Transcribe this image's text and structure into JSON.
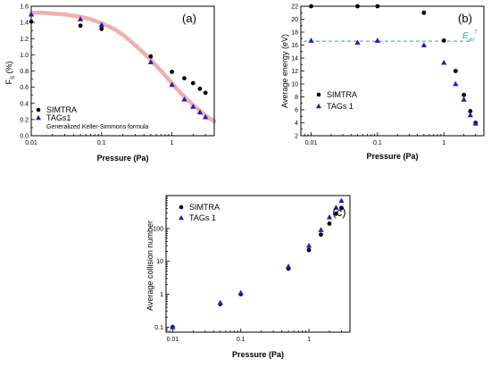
{
  "chart_data": [
    {
      "type": "scatter",
      "panel_label": "(a)",
      "xlabel": "Pressure (Pa)",
      "ylabel_main": "F",
      "ylabel_sub": "S",
      "ylabel_unit": " (%)",
      "xscale": "log",
      "xlim": [
        0.01,
        4
      ],
      "ylim": [
        0.0,
        1.6
      ],
      "xticks": [
        {
          "v": 0.01,
          "label": "0.01"
        },
        {
          "v": 0.1,
          "label": "0.1"
        },
        {
          "v": 1,
          "label": "1"
        }
      ],
      "yticks": [
        "0.0",
        "0.2",
        "0.4",
        "0.6",
        "0.8",
        "1.0",
        "1.2",
        "1.4",
        "1.6"
      ],
      "legend_position": "bottom-left",
      "series": [
        {
          "name": "SIMTRA",
          "marker": "circle",
          "color": "#000000",
          "x": [
            0.01,
            0.05,
            0.1,
            0.5,
            1.0,
            1.5,
            2.0,
            2.5,
            3.0
          ],
          "y": [
            1.41,
            1.36,
            1.32,
            0.98,
            0.79,
            0.71,
            0.65,
            0.58,
            0.53
          ]
        },
        {
          "name": "TAGs1",
          "marker": "triangle",
          "color": "#1c1cc8",
          "x": [
            0.01,
            0.05,
            0.1,
            0.5,
            1.0,
            1.5,
            2.0,
            2.5,
            3.0
          ],
          "y": [
            1.5,
            1.44,
            1.37,
            0.91,
            0.63,
            0.45,
            0.36,
            0.29,
            0.23
          ]
        },
        {
          "name": "Generalized Keller-Simmons formula",
          "marker": "line",
          "color": "#f0a0a0",
          "x": [
            0.01,
            0.015,
            0.02,
            0.03,
            0.05,
            0.07,
            0.1,
            0.15,
            0.2,
            0.3,
            0.4,
            0.5,
            0.7,
            1.0,
            1.3,
            1.6,
            2.0,
            2.5,
            3.0,
            3.5,
            4.0
          ],
          "y": [
            1.52,
            1.52,
            1.51,
            1.5,
            1.47,
            1.44,
            1.39,
            1.32,
            1.25,
            1.12,
            1.02,
            0.94,
            0.8,
            0.65,
            0.54,
            0.46,
            0.38,
            0.31,
            0.25,
            0.21,
            0.18
          ]
        }
      ]
    },
    {
      "type": "scatter",
      "panel_label": "(b)",
      "xlabel": "Pressure (Pa)",
      "ylabel": "Average energy (eV)",
      "xscale": "log",
      "xlim": [
        0.007,
        4
      ],
      "ylim": [
        2,
        22
      ],
      "xticks": [
        {
          "v": 0.01,
          "label": "0.01"
        },
        {
          "v": 0.1,
          "label": "0.1"
        },
        {
          "v": 1,
          "label": "1"
        }
      ],
      "yticks": [
        "2",
        "4",
        "6",
        "8",
        "10",
        "12",
        "14",
        "16",
        "18",
        "20",
        "22"
      ],
      "reference_line": {
        "label": "E",
        "label_sub": "av",
        "label_sup": "T",
        "y": 16.6,
        "color": "#2aa5b5"
      },
      "legend_position": "center-left",
      "series": [
        {
          "name": "SIMTRA",
          "marker": "circle",
          "color": "#000000",
          "x": [
            0.01,
            0.05,
            0.1,
            0.5,
            1.0,
            1.5,
            2.0,
            2.5,
            3.0
          ],
          "y": [
            22.0,
            22.0,
            22.0,
            21.0,
            16.7,
            12.0,
            8.3,
            5.8,
            4.0
          ]
        },
        {
          "name": "TAGs 1",
          "marker": "triangle",
          "color": "#1c1cc8",
          "x": [
            0.01,
            0.05,
            0.1,
            0.5,
            1.0,
            1.5,
            2.0,
            2.5,
            3.0
          ],
          "y": [
            16.7,
            16.4,
            16.7,
            16.0,
            13.3,
            10.0,
            7.6,
            5.2,
            3.9
          ]
        }
      ]
    },
    {
      "type": "scatter",
      "panel_label": "(c)",
      "xlabel": "Pressure (Pa)",
      "ylabel": "Average collision number",
      "xscale": "log",
      "yscale": "log",
      "xlim": [
        0.008,
        4
      ],
      "ylim": [
        0.07,
        1000
      ],
      "xticks": [
        {
          "v": 0.01,
          "label": "0.01"
        },
        {
          "v": 0.1,
          "label": "0.1"
        },
        {
          "v": 1,
          "label": "1"
        }
      ],
      "yticks": [
        {
          "v": 0.1,
          "label": "0.1"
        },
        {
          "v": 1,
          "label": "1"
        },
        {
          "v": 10,
          "label": "10"
        },
        {
          "v": 100,
          "label": "100"
        }
      ],
      "legend_position": "top-left",
      "series": [
        {
          "name": "SIMTRA",
          "marker": "circle",
          "color": "#000000",
          "x": [
            0.01,
            0.05,
            0.1,
            0.5,
            1.0,
            1.5,
            2.0,
            2.5,
            3.0
          ],
          "y": [
            0.1,
            0.5,
            1.0,
            6.0,
            22.0,
            65.0,
            140.0,
            280.0,
            420.0
          ]
        },
        {
          "name": "TAGs 1",
          "marker": "triangle",
          "color": "#1c1cc8",
          "x": [
            0.01,
            0.05,
            0.1,
            0.5,
            1.0,
            1.5,
            2.0,
            2.5,
            3.0
          ],
          "y": [
            0.1,
            0.55,
            1.1,
            7.0,
            30.0,
            90.0,
            220.0,
            430.0,
            700.0
          ]
        }
      ]
    }
  ]
}
